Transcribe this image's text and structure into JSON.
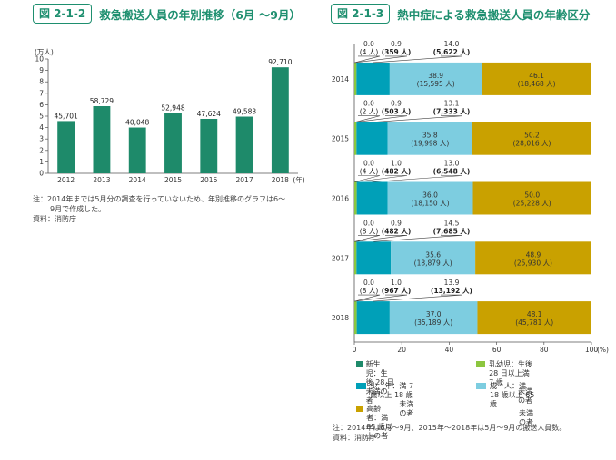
{
  "left": {
    "tag": "図 2-1-2",
    "title": "救急搬送人員の年別推移（6月 ～9月）",
    "note": "注：2014年までは5月分の調査を行っていないため、年別推移のグラフは6～",
    "note2": "9月で作成した。",
    "source": "資料：消防庁"
  },
  "right": {
    "tag": "図 2-1-3",
    "title": "熱中症による救急搬送人員の年齢区分",
    "note": "注：2014年は6月～9月、2015年～2018年は5月～9月の搬送人員数。",
    "source": "資料：消防庁"
  },
  "colors": {
    "bar": "#1e8a6a",
    "newborn": "#1e8a6a",
    "infant": "#8cc63f",
    "child": "#00a0b8",
    "adult": "#7dcde0",
    "elderly": "#c9a100"
  },
  "chart_data": [
    {
      "type": "bar",
      "categories": [
        "2012",
        "2013",
        "2014",
        "2015",
        "2016",
        "2017",
        "2018"
      ],
      "x_suffix": "(年)",
      "values": [
        45701,
        58729,
        40048,
        52948,
        47624,
        49583,
        92710
      ],
      "value_labels": [
        "45,701",
        "58,729",
        "40,048",
        "52,948",
        "47,624",
        "49,583",
        "92,710"
      ],
      "yunit": "(万人)",
      "ylim": [
        0,
        10
      ],
      "yticks": [
        "0",
        "1",
        "2",
        "3",
        "4",
        "5",
        "6",
        "7",
        "8",
        "9",
        "10"
      ],
      "grid": false
    },
    {
      "type": "bar",
      "orientation": "horizontal",
      "stacked": true,
      "categories": [
        "2014",
        "2015",
        "2016",
        "2017",
        "2018"
      ],
      "xlim": [
        0,
        100
      ],
      "xticks": [
        "0",
        "20",
        "40",
        "60",
        "80",
        "100"
      ],
      "xunit": "(%)",
      "series": [
        {
          "key": "newborn",
          "values": [
            0.0,
            0.0,
            0.0,
            0.0,
            0.0
          ],
          "pct_labels": [
            "0.0",
            "0.0",
            "0.0",
            "0.0",
            "0.0"
          ],
          "count_labels": [
            "(4 人)",
            "(2 人)",
            "(4 人)",
            "(8 人)",
            "(8 人)"
          ]
        },
        {
          "key": "infant",
          "values": [
            0.9,
            0.9,
            1.0,
            0.9,
            1.0
          ],
          "pct_labels": [
            "0.9",
            "0.9",
            "1.0",
            "0.9",
            "1.0"
          ],
          "count_labels": [
            "(359 人)",
            "(503 人)",
            "(482 人)",
            "(482 人)",
            "(967 人)"
          ]
        },
        {
          "key": "child",
          "values": [
            14.0,
            13.1,
            13.0,
            14.5,
            13.9
          ],
          "pct_labels": [
            "14.0",
            "13.1",
            "13.0",
            "14.5",
            "13.9"
          ],
          "count_labels": [
            "(5,622 人)",
            "(7,333 人)",
            "(6,548 人)",
            "(7,685 人)",
            "(13,192 人)"
          ]
        },
        {
          "key": "adult",
          "values": [
            38.9,
            35.8,
            36.0,
            35.6,
            37.0
          ],
          "pct_labels": [
            "38.9",
            "35.8",
            "36.0",
            "35.6",
            "37.0"
          ],
          "count_labels": [
            "(15,595 人)",
            "(19,998 人)",
            "(18,150 人)",
            "(18,879 人)",
            "(35,189 人)"
          ]
        },
        {
          "key": "elderly",
          "values": [
            46.1,
            50.2,
            50.0,
            48.9,
            48.1
          ],
          "pct_labels": [
            "46.1",
            "50.2",
            "50.0",
            "48.9",
            "48.1"
          ],
          "count_labels": [
            "(18,468 人)",
            "(28,016 人)",
            "(25,228 人)",
            "(25,930 人)",
            "(45,781 人)"
          ]
        }
      ],
      "legend": [
        {
          "key": "newborn",
          "label": "新生児：生後 28 日未満の者",
          "label2": ""
        },
        {
          "key": "infant",
          "label": "乳幼児：生後 28 日以上満 7 歳",
          "label2": "未満の者"
        },
        {
          "key": "child",
          "label": "少　年：満 7 歳以上 18 歳",
          "label2": "未満の者"
        },
        {
          "key": "adult",
          "label": "成　人：満 18 歳以上 65 歳",
          "label2": "未満の者"
        },
        {
          "key": "elderly",
          "label": "高齢者：満 65 歳以上の者",
          "label2": ""
        }
      ]
    }
  ]
}
